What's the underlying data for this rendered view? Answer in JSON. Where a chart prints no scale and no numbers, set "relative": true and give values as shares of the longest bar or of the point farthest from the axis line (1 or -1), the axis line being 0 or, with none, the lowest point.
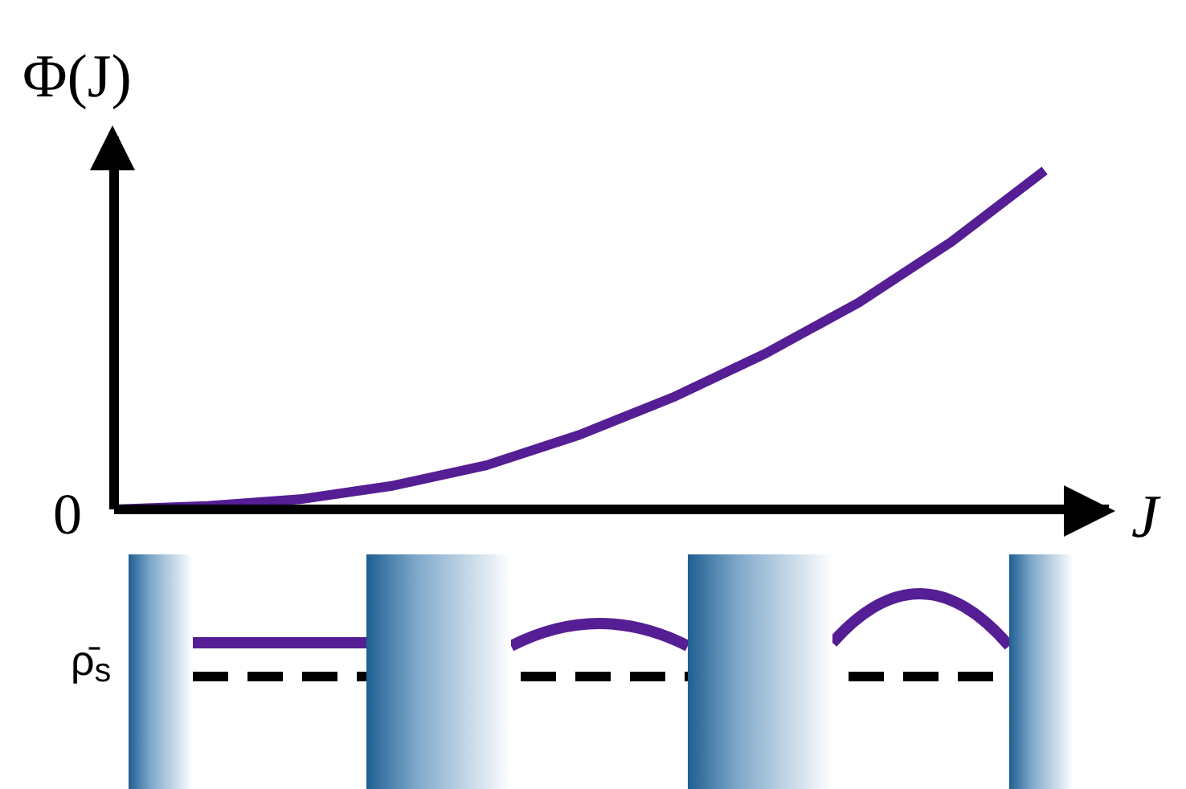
{
  "chart_data": {
    "type": "line",
    "relative": true,
    "ylabel": "Φ(J)",
    "xlabel": "J",
    "categories": [
      null,
      null,
      null,
      null,
      null,
      null,
      null,
      null,
      null,
      null,
      null
    ],
    "series": [
      {
        "color": "#551e94",
        "values": [
          0,
          0.01,
          0.03,
          0.07,
          0.13,
          0.22,
          0.33,
          0.46,
          0.61,
          0.79,
          1
        ]
      }
    ],
    "annotations": [
      "0",
      "ρ̄$_{s}$"
    ]
  }
}
